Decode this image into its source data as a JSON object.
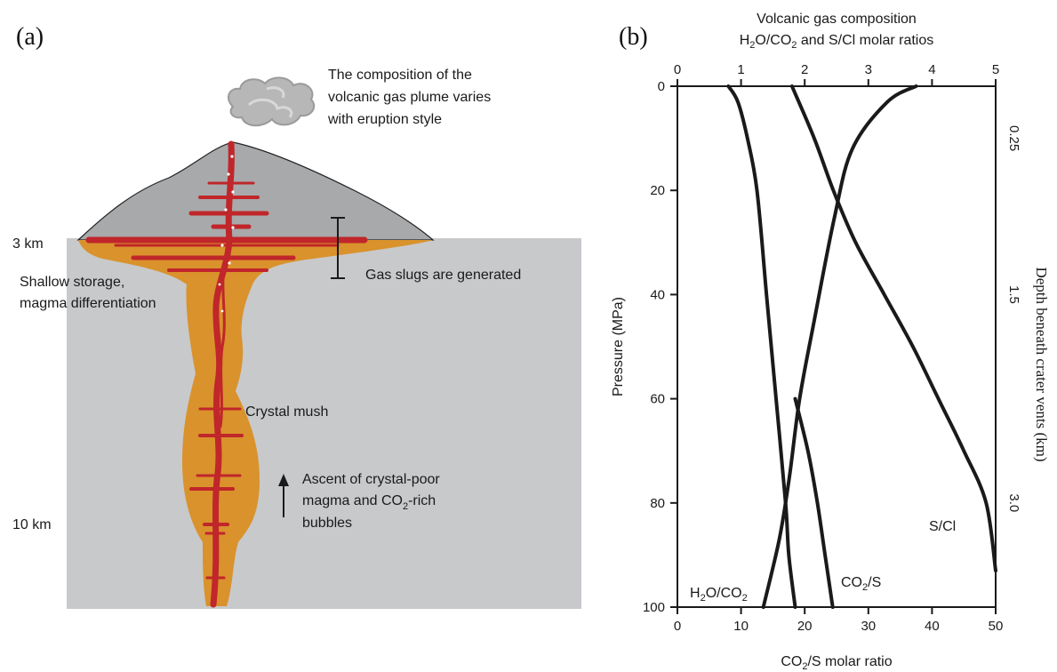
{
  "colors": {
    "crust": "#c8c9cb",
    "edifice": "#a8a9ab",
    "mush": "#d9922c",
    "magma": "#c0262a",
    "plume": "#b7b7b7"
  },
  "panel_a": {
    "label": "(a)",
    "plume_text": [
      "The composition of the",
      "volcanic gas plume varies",
      "with eruption style"
    ],
    "depth_3km": "3 km",
    "depth_10km": "10 km",
    "shallow_storage": [
      "Shallow storage,",
      "magma differentiation"
    ],
    "gas_slugs": "Gas slugs are generated",
    "crystal_mush": "Crystal mush",
    "ascent": [
      "Ascent of crystal-poor",
      "magma and CO",
      "2",
      "-rich",
      "bubbles"
    ],
    "icons": [
      "gas-plume-icon",
      "up-arrow-icon",
      "range-bracket-icon"
    ]
  },
  "panel_b": {
    "label": "(b)",
    "top_axis_title_1": "Volcanic gas composition",
    "top_axis_title_2a": "H",
    "top_axis_title_2b": "2",
    "top_axis_title_2c": "O/CO",
    "top_axis_title_2d": "2",
    "top_axis_title_2e": " and S/Cl molar ratios",
    "left_axis_title": "Pressure (MPa)",
    "right_axis_title": "Depth beneath crater vents (km)",
    "bottom_axis_title_a": "CO",
    "bottom_axis_title_b": "2",
    "bottom_axis_title_c": "/S molar ratio",
    "curve_label_h2o": [
      "H",
      "2",
      "O/CO",
      "2"
    ],
    "curve_label_co2s": [
      "CO",
      "2",
      "/S"
    ],
    "curve_label_scl": "S/Cl"
  },
  "chart_data": {
    "type": "line",
    "title": "Volcanic gas composition",
    "top_axis": {
      "label": "H2O/CO2 and S/Cl molar ratios",
      "lim": [
        0,
        5
      ],
      "ticks": [
        "0",
        "1",
        "2",
        "3",
        "4",
        "5"
      ]
    },
    "bottom_axis": {
      "label": "CO2/S molar ratio",
      "lim": [
        0,
        50
      ],
      "ticks": [
        "0",
        "10",
        "20",
        "30",
        "40",
        "50"
      ]
    },
    "left_axis": {
      "label": "Pressure (MPa)",
      "lim": [
        0,
        100
      ],
      "inverted": true,
      "ticks": [
        "0",
        "20",
        "40",
        "60",
        "80",
        "100"
      ]
    },
    "right_axis": {
      "label": "Depth beneath crater vents (km)",
      "ticks": [
        {
          "label": "0.25",
          "pressure": 10
        },
        {
          "label": "1.5",
          "pressure": 40
        },
        {
          "label": "3.0",
          "pressure": 80
        }
      ]
    },
    "series": [
      {
        "name": "H2O/CO2",
        "axis": "top",
        "points": [
          [
            0.8,
            0
          ],
          [
            0.95,
            3
          ],
          [
            1.1,
            10
          ],
          [
            1.25,
            20
          ],
          [
            1.4,
            40
          ],
          [
            1.55,
            60
          ],
          [
            1.7,
            80
          ],
          [
            1.75,
            90
          ],
          [
            1.85,
            100
          ]
        ]
      },
      {
        "name": "CO2/S",
        "axis": "bottom",
        "points": [
          [
            37.5,
            0
          ],
          [
            33,
            3
          ],
          [
            27.5,
            12
          ],
          [
            24.7,
            25
          ],
          [
            21.5,
            45
          ],
          [
            19.2,
            60
          ],
          [
            17.6,
            75
          ],
          [
            16,
            87
          ],
          [
            13.5,
            100
          ]
        ]
      },
      {
        "name": "S/Cl",
        "axis": "top",
        "points": [
          [
            1.8,
            0
          ],
          [
            2.15,
            10
          ],
          [
            2.45,
            20
          ],
          [
            2.8,
            30
          ],
          [
            3.25,
            40
          ],
          [
            3.7,
            50
          ],
          [
            4.1,
            60
          ],
          [
            4.5,
            70
          ],
          [
            4.85,
            80
          ],
          [
            5.0,
            93
          ]
        ]
      },
      {
        "name": "CO2/S (lower)",
        "axis": "bottom",
        "points": [
          [
            18.5,
            60
          ],
          [
            20.5,
            70
          ],
          [
            22,
            80
          ],
          [
            23.2,
            90
          ],
          [
            24.4,
            100
          ]
        ]
      }
    ]
  }
}
